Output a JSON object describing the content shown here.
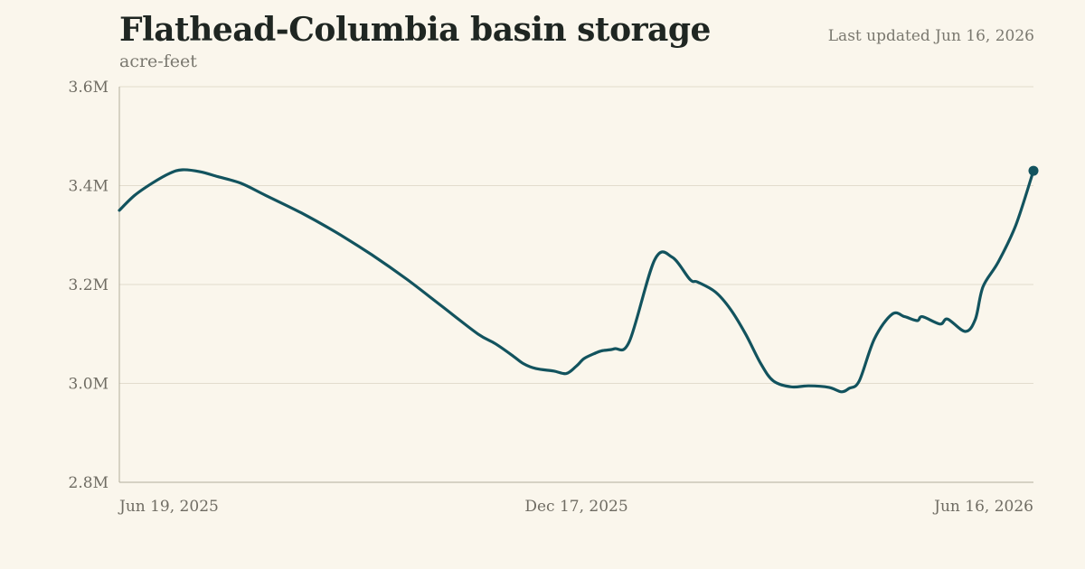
{
  "header": {
    "title": "Flathead-Columbia basin storage",
    "subtitle": "acre-feet",
    "updated": "Last updated Jun 16, 2026"
  },
  "colors": {
    "line": "#12535e",
    "grid": "#e2dccd",
    "axis": "#b3ad9c",
    "background": "#faf6ec"
  },
  "chart_data": {
    "type": "line",
    "title": "Flathead-Columbia basin storage",
    "ylabel": "acre-feet",
    "xlim": [
      "2025-06-19",
      "2026-06-16"
    ],
    "ylim": [
      2800000,
      3600000
    ],
    "grid": true,
    "x_ticks": [
      "2025-06-19",
      "2025-12-17",
      "2026-06-16"
    ],
    "x_tick_labels": [
      "Jun 19, 2025",
      "Dec 17, 2025",
      "Jun 16, 2026"
    ],
    "y_ticks": [
      2800000,
      3000000,
      3200000,
      3400000,
      3600000
    ],
    "y_tick_labels": [
      "2.8M",
      "3.0M",
      "3.2M",
      "3.4M",
      "3.6M"
    ],
    "series": [
      {
        "name": "",
        "x": [
          "2025-06-19",
          "2025-06-25",
          "2025-07-02",
          "2025-07-09",
          "2025-07-14",
          "2025-07-21",
          "2025-07-28",
          "2025-08-06",
          "2025-08-16",
          "2025-08-30",
          "2025-09-13",
          "2025-09-27",
          "2025-10-11",
          "2025-10-25",
          "2025-11-08",
          "2025-11-15",
          "2025-11-22",
          "2025-11-26",
          "2025-12-01",
          "2025-12-08",
          "2025-12-13",
          "2025-12-17",
          "2025-12-20",
          "2025-12-24",
          "2025-12-27",
          "2026-01-01",
          "2026-01-07",
          "2026-01-17",
          "2026-01-24",
          "2026-01-31",
          "2026-02-03",
          "2026-02-10",
          "2026-02-16",
          "2026-02-22",
          "2026-02-28",
          "2026-03-05",
          "2026-03-12",
          "2026-03-19",
          "2026-03-27",
          "2026-04-01",
          "2026-04-04",
          "2026-04-08",
          "2026-04-14",
          "2026-04-21",
          "2026-04-26",
          "2026-05-01",
          "2026-05-03",
          "2026-05-10",
          "2026-05-13",
          "2026-05-20",
          "2026-05-24",
          "2026-05-27",
          "2026-06-02",
          "2026-06-09",
          "2026-06-16"
        ],
        "values": [
          3350000,
          3380000,
          3405000,
          3425000,
          3432000,
          3428000,
          3418000,
          3405000,
          3380000,
          3345000,
          3305000,
          3260000,
          3210000,
          3155000,
          3100000,
          3080000,
          3055000,
          3040000,
          3030000,
          3025000,
          3020000,
          3035000,
          3050000,
          3060000,
          3066000,
          3070000,
          3085000,
          3250000,
          3255000,
          3210000,
          3205000,
          3185000,
          3150000,
          3100000,
          3040000,
          3005000,
          2993000,
          2995000,
          2992000,
          2983000,
          2990000,
          3005000,
          3090000,
          3140000,
          3135000,
          3127000,
          3135000,
          3120000,
          3130000,
          3105000,
          3130000,
          3195000,
          3245000,
          3320000,
          3430000
        ]
      }
    ]
  }
}
